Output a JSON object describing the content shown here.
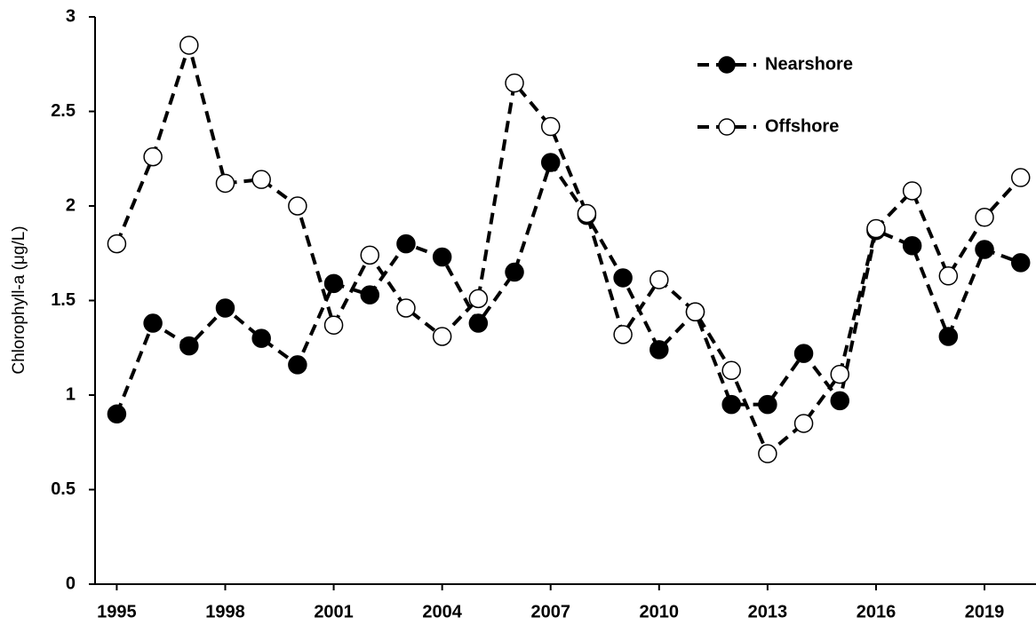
{
  "chart_data": {
    "type": "line",
    "y_label": "Chlorophyll-a (μg/L)",
    "x": [
      1995,
      1996,
      1997,
      1998,
      1999,
      2000,
      2001,
      2002,
      2003,
      2004,
      2005,
      2006,
      2007,
      2008,
      2009,
      2010,
      2011,
      2012,
      2013,
      2014,
      2015,
      2016,
      2017,
      2018,
      2019,
      2020
    ],
    "series": [
      {
        "name": "Nearshore",
        "color": "#000000",
        "marker": "filled",
        "values": [
          0.9,
          1.38,
          1.26,
          1.46,
          1.3,
          1.16,
          1.59,
          1.53,
          1.8,
          1.73,
          1.38,
          1.65,
          2.23,
          1.95,
          1.62,
          1.24,
          1.44,
          0.95,
          0.95,
          1.22,
          0.97,
          1.87,
          1.79,
          1.31,
          1.77,
          1.7
        ]
      },
      {
        "name": "Offshore",
        "color": "#000000",
        "marker": "open",
        "values": [
          1.8,
          2.26,
          2.85,
          2.12,
          2.14,
          2.0,
          1.37,
          1.74,
          1.46,
          1.31,
          1.51,
          2.65,
          2.42,
          1.96,
          1.32,
          1.61,
          1.44,
          1.13,
          0.69,
          0.85,
          1.11,
          1.88,
          2.08,
          1.63,
          1.94,
          2.15
        ]
      }
    ],
    "xlim": [
      1994.4,
      2020.4
    ],
    "xticks": [
      1995,
      1998,
      2001,
      2004,
      2007,
      2010,
      2013,
      2016,
      2019
    ],
    "ylim": [
      0,
      3
    ],
    "yticks": [
      0,
      0.5,
      1,
      1.5,
      2,
      2.5,
      3
    ],
    "grid": false,
    "legend": "top-right"
  }
}
